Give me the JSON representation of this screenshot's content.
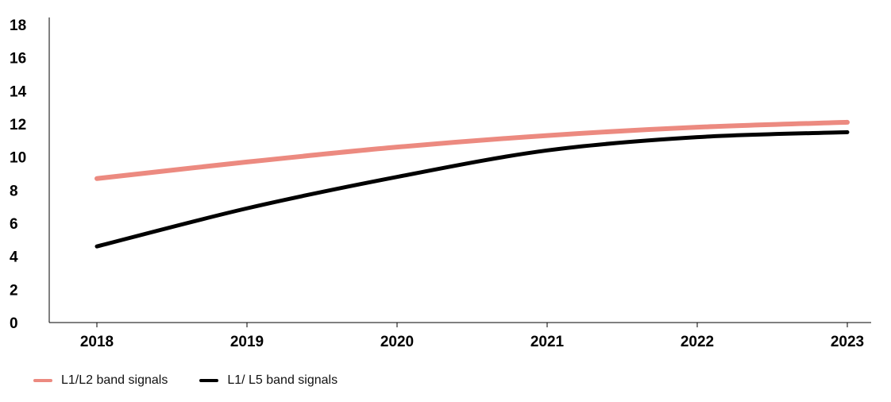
{
  "chart_data": {
    "type": "line",
    "title": "",
    "xlabel": "",
    "ylabel": "",
    "categories": [
      "2018",
      "2019",
      "2020",
      "2021",
      "2022",
      "2023"
    ],
    "yticks": [
      "0",
      "2",
      "4",
      "6",
      "8",
      "10",
      "12",
      "14",
      "16",
      "18"
    ],
    "ylim": [
      0,
      18
    ],
    "grid": false,
    "legend_position": "bottom-left",
    "series": [
      {
        "name": "L1/L2 band signals",
        "color": "#ec8a80",
        "values": [
          8.7,
          9.7,
          10.6,
          11.3,
          11.8,
          12.1
        ]
      },
      {
        "name": "L1/ L5 band signals",
        "color": "#000000",
        "values": [
          4.6,
          6.9,
          8.8,
          10.4,
          11.2,
          11.5
        ]
      }
    ]
  }
}
